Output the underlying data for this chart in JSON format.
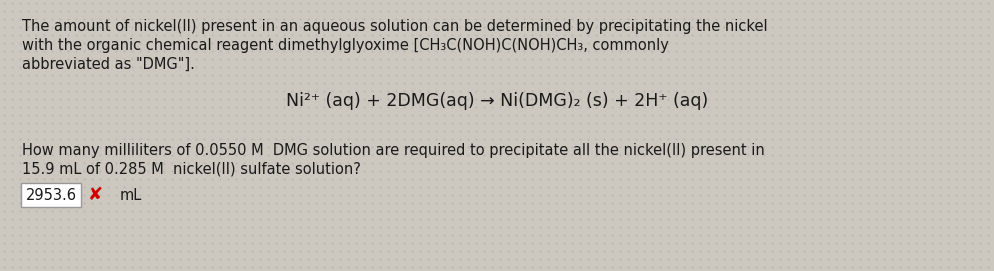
{
  "background_color": "#cdc8bf",
  "text_color": "#1a1a1a",
  "line1": "The amount of nickel(II) present in an aqueous solution can be determined by precipitating the nickel",
  "line2": "with the organic chemical reagent dimethylglyoxime [CH₃C(NOH)C(NOH)CH₃, commonly",
  "line3": "abbreviated as \"DMG\"].",
  "equation": "Ni²⁺ (aq) + 2DMG(aq) → Ni(DMG)₂ (s) + 2H⁺ (aq)",
  "line4": "How many milliliters of 0.0550 M  DMG solution are required to precipitate all the nickel(II) present in",
  "line5": "15.9 mL of 0.285 M  nickel(II) sulfate solution?",
  "answer_value": "2953.6",
  "answer_unit": "mL",
  "answer_box_color": "#ffffff",
  "answer_box_border": "#999999",
  "x_mark": "✘",
  "x_color": "#cc0000",
  "font_size_body": 10.5,
  "font_size_equation": 12.5,
  "font_size_answer": 10.5
}
